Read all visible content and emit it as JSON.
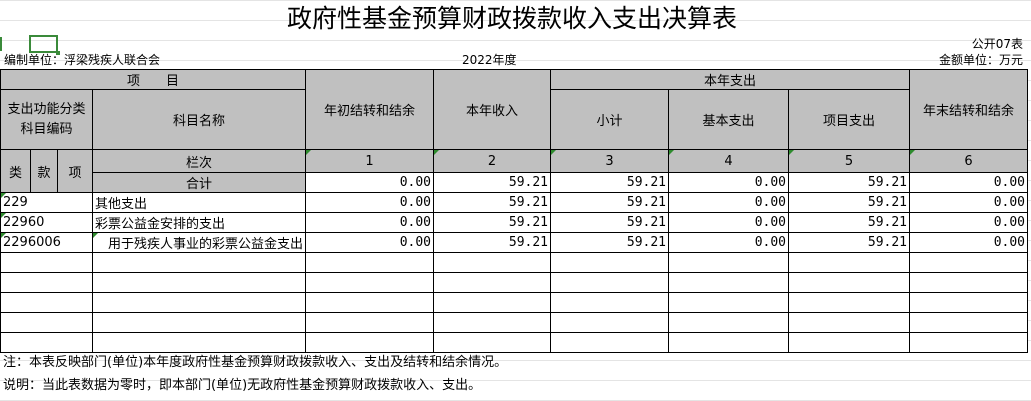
{
  "title": "政府性基金预算财政拨款收入支出决算表",
  "table_no": "公开07表",
  "unit": "编制单位：浮梁残疾人联合会",
  "year": "2022年度",
  "money_unit": "金额单位：万元",
  "headers": {
    "item": "项　　目",
    "code": "支出功能分类科目编码",
    "name": "科目名称",
    "begin": "年初结转和结余",
    "income": "本年收入",
    "expense": "本年支出",
    "subtotal": "小计",
    "basic": "基本支出",
    "project": "项目支出",
    "end": "年末结转和结余",
    "lei": "类",
    "kuan": "款",
    "xiang": "项",
    "col_label": "栏次",
    "c1": "1",
    "c2": "2",
    "c3": "3",
    "c4": "4",
    "c5": "5",
    "c6": "6",
    "total": "合计"
  },
  "total_row": [
    "0.00",
    "59.21",
    "59.21",
    "0.00",
    "59.21",
    "0.00"
  ],
  "rows": [
    {
      "code": "229",
      "name": "其他支出",
      "values": [
        "0.00",
        "59.21",
        "59.21",
        "0.00",
        "59.21",
        "0.00"
      ]
    },
    {
      "code": "22960",
      "name": "彩票公益金安排的支出",
      "values": [
        "0.00",
        "59.21",
        "59.21",
        "0.00",
        "59.21",
        "0.00"
      ]
    },
    {
      "code": "2296006",
      "name": "　用于残疾人事业的彩票公益金支出",
      "values": [
        "0.00",
        "59.21",
        "59.21",
        "0.00",
        "59.21",
        "0.00"
      ]
    }
  ],
  "empty_rows": 5,
  "note1": "注：本表反映部门(单位)本年度政府性基金预算财政拨款收入、支出及结转和结余情况。",
  "note2": "说明：当此表数据为零时，即本部门(单位)无政府性基金预算财政拨款收入、支出。",
  "colors": {
    "header_bg": "#c0c0c0",
    "selection": "#3a8a3a"
  }
}
